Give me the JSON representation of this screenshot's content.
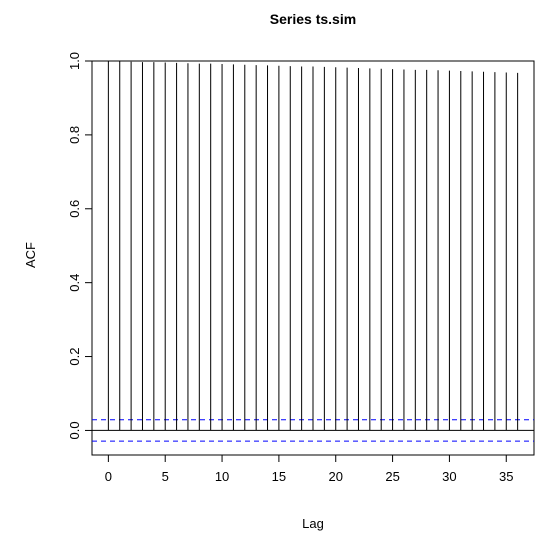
{
  "chart_data": {
    "type": "bar",
    "title": "Series  ts.sim",
    "xlabel": "Lag",
    "ylabel": "ACF",
    "x": [
      0,
      1,
      2,
      3,
      4,
      5,
      6,
      7,
      8,
      9,
      10,
      11,
      12,
      13,
      14,
      15,
      16,
      17,
      18,
      19,
      20,
      21,
      22,
      23,
      24,
      25,
      26,
      27,
      28,
      29,
      30,
      31,
      32,
      33,
      34,
      35,
      36
    ],
    "values": [
      1.0,
      0.999,
      0.998,
      0.997,
      0.997,
      0.996,
      0.995,
      0.994,
      0.993,
      0.993,
      0.992,
      0.991,
      0.99,
      0.989,
      0.988,
      0.987,
      0.986,
      0.985,
      0.985,
      0.984,
      0.983,
      0.982,
      0.981,
      0.98,
      0.979,
      0.978,
      0.977,
      0.976,
      0.976,
      0.975,
      0.974,
      0.973,
      0.972,
      0.971,
      0.97,
      0.969,
      0.968
    ],
    "confidence_bound": 0.029,
    "xlim": [
      -1.44,
      37.44
    ],
    "ylim": [
      -0.0665,
      1.0
    ],
    "x_ticks": [
      "0",
      "5",
      "10",
      "15",
      "20",
      "25",
      "30",
      "35"
    ],
    "y_ticks": [
      "0.0",
      "0.2",
      "0.4",
      "0.6",
      "0.8",
      "1.0"
    ],
    "grid": false,
    "colors": {
      "bars": "#000000",
      "confidence": "#0000ff",
      "zero_line": "#000000"
    }
  }
}
